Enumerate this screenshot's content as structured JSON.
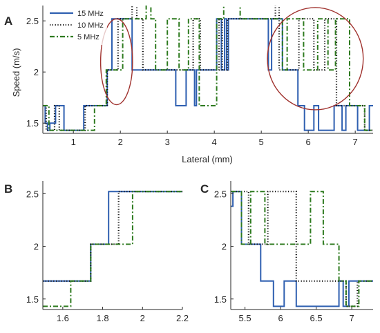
{
  "chart_data": [
    {
      "panel": "A",
      "type": "line",
      "xlabel": "Lateral (mm)",
      "ylabel": "Speed (m/s)",
      "xlim": [
        0.35,
        7.38
      ],
      "ylim": [
        1.4,
        2.65
      ],
      "xticks": [
        1,
        2,
        3,
        4,
        5,
        6,
        7
      ],
      "yticks": [
        1.5,
        2,
        2.5
      ],
      "xtick_labels": [
        "1",
        "2",
        "3",
        "4",
        "5",
        "6",
        "7"
      ],
      "ytick_labels": [
        "1.5",
        "2",
        "2.5"
      ],
      "legend": {
        "position": "top-left",
        "entries": [
          "15 MHz",
          "10 MHz",
          "5 MHz"
        ]
      },
      "annotations": [
        {
          "type": "ellipse",
          "cx": 1.92,
          "cy": 2.1,
          "rx": 0.34,
          "ry": 0.42,
          "color": "#a0322e"
        },
        {
          "type": "ellipse",
          "cx": 6.15,
          "cy": 2.13,
          "rx": 1.02,
          "ry": 0.5,
          "color": "#a0322e"
        }
      ],
      "series": [
        {
          "name": "15 MHz",
          "color": "#2e5fb0",
          "style": "solid",
          "x": [
            0.35,
            0.4,
            0.4,
            0.45,
            0.45,
            0.5,
            0.5,
            0.62,
            0.62,
            0.8,
            0.8,
            0.92,
            0.92,
            1.22,
            1.22,
            1.32,
            1.32,
            1.72,
            1.72,
            1.82,
            1.82,
            1.88,
            1.88,
            2.25,
            2.25,
            2.3,
            2.3,
            2.95,
            2.95,
            3.18,
            3.18,
            3.4,
            3.4,
            3.58,
            3.58,
            3.62,
            3.62,
            4.05,
            4.05,
            4.15,
            4.15,
            4.22,
            4.22,
            4.26,
            4.26,
            4.3,
            4.3,
            5.15,
            5.15,
            5.22,
            5.22,
            5.45,
            5.45,
            5.62,
            5.62,
            5.78,
            5.78,
            5.92,
            5.92,
            6.12,
            6.12,
            6.22,
            6.22,
            6.55,
            6.55,
            6.72,
            6.72,
            6.8,
            6.8,
            7.05,
            7.05,
            7.3,
            7.3,
            7.38
          ],
          "y": [
            1.67,
            1.67,
            1.5,
            1.5,
            1.43,
            1.43,
            1.5,
            1.5,
            1.67,
            1.67,
            1.43,
            1.43,
            1.43,
            1.43,
            1.67,
            1.67,
            1.67,
            1.67,
            2.02,
            2.02,
            2.52,
            2.52,
            2.52,
            2.52,
            2.02,
            2.02,
            2.02,
            2.02,
            2.02,
            2.02,
            1.67,
            1.67,
            2.02,
            2.02,
            1.67,
            1.67,
            2.02,
            2.02,
            2.52,
            2.52,
            2.02,
            2.02,
            2.52,
            2.52,
            2.02,
            2.02,
            2.52,
            2.52,
            2.02,
            2.02,
            2.52,
            2.52,
            2.02,
            2.02,
            2.02,
            2.02,
            1.67,
            1.67,
            1.43,
            1.43,
            1.67,
            1.67,
            1.43,
            1.43,
            1.67,
            1.67,
            1.43,
            1.43,
            1.67,
            1.67,
            1.43,
            1.43,
            1.67,
            1.67
          ]
        },
        {
          "name": "10 MHz",
          "color": "#111111",
          "style": "dotted",
          "x": [
            0.35,
            0.42,
            0.42,
            0.6,
            0.6,
            0.7,
            0.7,
            1.25,
            1.25,
            1.45,
            1.45,
            1.72,
            1.72,
            1.95,
            1.95,
            2.25,
            2.25,
            2.35,
            2.35,
            2.48,
            2.48,
            3.15,
            3.15,
            3.55,
            3.55,
            3.7,
            3.7,
            4.1,
            4.1,
            4.17,
            4.17,
            4.28,
            4.28,
            5.3,
            5.3,
            5.38,
            5.38,
            5.8,
            5.8,
            6.12,
            6.12,
            6.35,
            6.35,
            6.6,
            6.6,
            6.82,
            6.82,
            7.2,
            7.2,
            7.38
          ],
          "y": [
            1.67,
            1.67,
            1.43,
            1.43,
            1.67,
            1.67,
            1.43,
            1.43,
            1.67,
            1.67,
            1.67,
            1.67,
            2.02,
            2.02,
            2.52,
            2.52,
            2.7,
            2.7,
            2.52,
            2.52,
            2.02,
            2.02,
            2.02,
            2.02,
            2.52,
            2.52,
            2.02,
            2.02,
            2.52,
            2.52,
            2.02,
            2.02,
            2.52,
            2.52,
            2.7,
            2.7,
            2.02,
            2.02,
            2.52,
            2.52,
            2.02,
            2.02,
            2.52,
            2.52,
            1.67,
            1.67,
            1.67,
            1.67,
            1.43,
            1.43
          ]
        },
        {
          "name": "5 MHz",
          "color": "#2d7a1e",
          "style": "dashdot",
          "x": [
            0.35,
            0.48,
            0.48,
            0.72,
            0.72,
            1.45,
            1.45,
            1.52,
            1.52,
            1.7,
            1.7,
            2.05,
            2.05,
            2.55,
            2.55,
            2.65,
            2.65,
            2.75,
            2.75,
            3.0,
            3.0,
            3.2,
            3.2,
            3.25,
            3.25,
            3.45,
            3.45,
            3.68,
            3.68,
            4.05,
            4.05,
            4.2,
            4.2,
            4.55,
            4.55,
            4.68,
            4.68,
            5.45,
            5.45,
            5.55,
            5.55,
            5.9,
            5.9,
            6.2,
            6.2,
            6.42,
            6.42,
            6.58,
            6.58,
            6.88,
            6.88,
            7.2,
            7.2,
            7.38
          ],
          "y": [
            1.67,
            1.67,
            1.43,
            1.43,
            1.43,
            1.43,
            1.67,
            1.67,
            1.67,
            1.67,
            2.02,
            2.02,
            2.52,
            2.52,
            2.7,
            2.7,
            2.52,
            2.52,
            2.02,
            2.02,
            2.52,
            2.52,
            2.52,
            2.52,
            2.02,
            2.02,
            2.52,
            2.52,
            1.67,
            1.67,
            2.52,
            2.52,
            2.7,
            2.7,
            2.52,
            2.52,
            2.52,
            2.52,
            2.02,
            2.02,
            2.52,
            2.52,
            2.02,
            2.02,
            2.52,
            2.52,
            2.02,
            2.02,
            2.52,
            2.52,
            1.67,
            1.67,
            1.43,
            1.43
          ]
        }
      ]
    },
    {
      "panel": "B",
      "type": "line",
      "xlim": [
        1.5,
        2.2
      ],
      "ylim": [
        1.4,
        2.62
      ],
      "xticks": [
        1.6,
        1.8,
        2.0,
        2.2
      ],
      "yticks": [
        1.5,
        2,
        2.5
      ],
      "xtick_labels": [
        "1.6",
        "1.8",
        "2",
        "2.2"
      ],
      "ytick_labels": [
        "1.5",
        "2",
        "2.5"
      ],
      "series": [
        {
          "name": "15 MHz",
          "color": "#2e5fb0",
          "style": "solid",
          "x": [
            1.5,
            1.74,
            1.74,
            1.79,
            1.79,
            1.83,
            1.83,
            2.2
          ],
          "y": [
            1.67,
            1.67,
            2.02,
            2.02,
            2.02,
            2.02,
            2.52,
            2.52
          ]
        },
        {
          "name": "10 MHz",
          "color": "#111111",
          "style": "dotted",
          "x": [
            1.5,
            1.74,
            1.74,
            1.88,
            1.88,
            2.2
          ],
          "y": [
            1.67,
            1.67,
            2.02,
            2.02,
            2.52,
            2.52
          ]
        },
        {
          "name": "5 MHz",
          "color": "#2d7a1e",
          "style": "dashdot",
          "x": [
            1.5,
            1.64,
            1.64,
            1.74,
            1.74,
            1.95,
            1.95,
            2.2
          ],
          "y": [
            1.43,
            1.43,
            1.67,
            1.67,
            2.02,
            2.02,
            2.52,
            2.52
          ]
        }
      ]
    },
    {
      "panel": "C",
      "type": "line",
      "xlim": [
        5.3,
        7.3
      ],
      "ylim": [
        1.4,
        2.62
      ],
      "xticks": [
        5.5,
        6.0,
        6.5,
        7.0
      ],
      "yticks": [
        1.5,
        2,
        2.5
      ],
      "xtick_labels": [
        "5.5",
        "6",
        "6.5",
        "7"
      ],
      "ytick_labels": [
        "1.5",
        "2",
        "2.5"
      ],
      "series": [
        {
          "name": "15 MHz",
          "color": "#2e5fb0",
          "style": "solid",
          "x": [
            5.3,
            5.33,
            5.33,
            5.45,
            5.45,
            5.65,
            5.65,
            5.72,
            5.72,
            5.9,
            5.9,
            6.05,
            6.05,
            6.22,
            6.22,
            6.3,
            6.3,
            6.82,
            6.82,
            6.88,
            6.88,
            6.96,
            6.96,
            7.15,
            7.15,
            7.3
          ],
          "y": [
            2.38,
            2.38,
            2.52,
            2.52,
            2.02,
            2.02,
            2.02,
            2.02,
            1.67,
            1.67,
            1.43,
            1.43,
            1.67,
            1.67,
            1.43,
            1.43,
            1.43,
            1.43,
            1.67,
            1.67,
            1.43,
            1.43,
            1.67,
            1.67,
            1.67,
            1.67
          ]
        },
        {
          "name": "10 MHz",
          "color": "#111111",
          "style": "dotted",
          "x": [
            5.3,
            5.55,
            5.55,
            5.82,
            5.82,
            6.22,
            6.22,
            6.6,
            6.6,
            6.92,
            6.92,
            7.08,
            7.08,
            7.3
          ],
          "y": [
            2.52,
            2.52,
            2.02,
            2.02,
            2.52,
            2.52,
            1.67,
            1.67,
            1.67,
            1.67,
            1.43,
            1.43,
            1.67,
            1.67
          ]
        },
        {
          "name": "5 MHz",
          "color": "#2d7a1e",
          "style": "dashdot",
          "x": [
            5.3,
            5.45,
            5.45,
            5.58,
            5.58,
            5.78,
            5.78,
            6.05,
            6.05,
            6.42,
            6.42,
            6.6,
            6.6,
            6.82,
            6.82,
            6.92,
            6.92,
            7.1,
            7.1,
            7.3
          ],
          "y": [
            2.52,
            2.52,
            2.02,
            2.02,
            2.52,
            2.52,
            2.02,
            2.02,
            2.02,
            2.02,
            2.52,
            2.52,
            2.02,
            2.02,
            1.67,
            1.67,
            1.43,
            1.43,
            1.67,
            1.67
          ]
        }
      ]
    }
  ]
}
